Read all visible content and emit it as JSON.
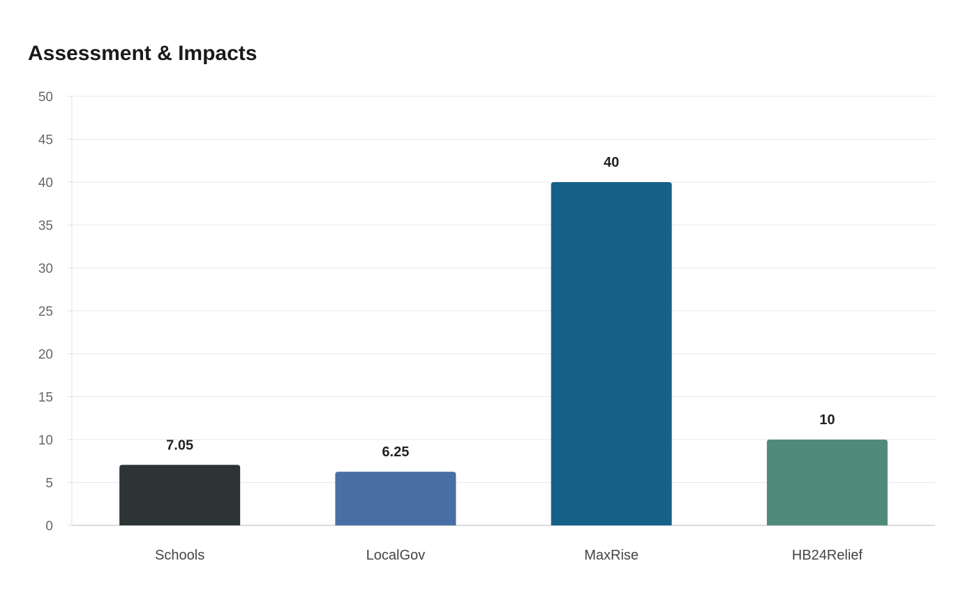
{
  "chart_data": {
    "type": "bar",
    "title": "Assessment & Impacts",
    "categories": [
      "Schools",
      "LocalGov",
      "MaxRise",
      "HB24Relief"
    ],
    "values": [
      7.05,
      6.25,
      40,
      10
    ],
    "data_labels": [
      "7.05",
      "6.25",
      "40",
      "10"
    ],
    "colors": [
      "#2d3436",
      "#4a6fa5",
      "#166088",
      "#4f8a7b"
    ],
    "xlabel": "",
    "ylabel": "",
    "ylim": [
      0,
      50
    ],
    "yticks": [
      0,
      5,
      10,
      15,
      20,
      25,
      30,
      35,
      40,
      45,
      50
    ],
    "grid": true,
    "legend": "none"
  }
}
